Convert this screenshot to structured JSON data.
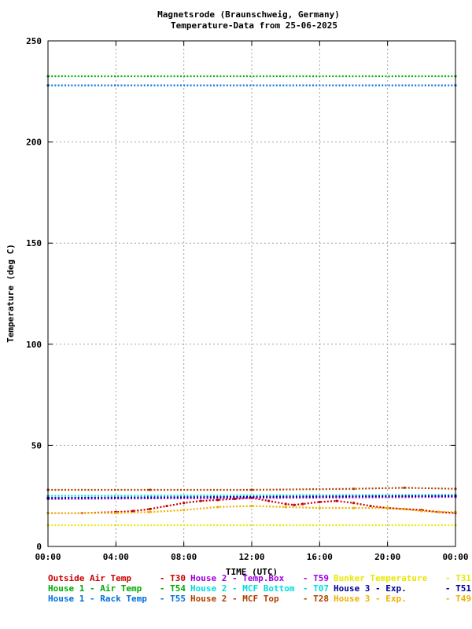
{
  "chart_data": {
    "type": "scatter",
    "title": "Magnetsrode (Braunschweig, Germany)",
    "subtitle": "Temperature-Data from 25-06-2025",
    "xlabel": "TIME (UTC)",
    "ylabel": "Temperature (deg C)",
    "xlim": [
      0,
      24
    ],
    "ylim": [
      0,
      250
    ],
    "grid": true,
    "x_ticks": [
      "00:00",
      "04:00",
      "08:00",
      "12:00",
      "16:00",
      "20:00",
      "00:00"
    ],
    "y_ticks": [
      "0",
      "50",
      "100",
      "150",
      "200",
      "250"
    ],
    "legend_position": "bottom",
    "series": [
      {
        "name": "Outside Air Temp",
        "sensor": "- T30",
        "color": "#cc0000",
        "points": [
          [
            0,
            16.5
          ],
          [
            2,
            16.5
          ],
          [
            4,
            17
          ],
          [
            5,
            17.5
          ],
          [
            6,
            18.5
          ],
          [
            7,
            20
          ],
          [
            8,
            21.5
          ],
          [
            9,
            22.5
          ],
          [
            10,
            23
          ],
          [
            11,
            23.5
          ],
          [
            12,
            24
          ],
          [
            13,
            22.5
          ],
          [
            14,
            21
          ],
          [
            14.5,
            20.5
          ],
          [
            15,
            21
          ],
          [
            16,
            22
          ],
          [
            17,
            22.5
          ],
          [
            18,
            21.5
          ],
          [
            19,
            20
          ],
          [
            20,
            19
          ],
          [
            21,
            18.5
          ],
          [
            22,
            18
          ],
          [
            23,
            17
          ],
          [
            24,
            16.5
          ]
        ]
      },
      {
        "name": "House 2 - Temp.Box",
        "sensor": "- T59",
        "color": "#a000e0",
        "points": [
          [
            0,
            23.5
          ],
          [
            24,
            24.5
          ]
        ]
      },
      {
        "name": "Bunker Temperature",
        "sensor": "- T31",
        "color": "#e8e800",
        "points": [
          [
            0,
            10.5
          ],
          [
            24,
            10.5
          ]
        ]
      },
      {
        "name": "House 1 - Air  Temp",
        "sensor": "- T54",
        "color": "#00aa00",
        "points": [
          [
            0,
            232.5
          ],
          [
            24,
            232.5
          ]
        ]
      },
      {
        "name": "House 2 - MCF Bottom",
        "sensor": "- T07",
        "color": "#00dddd",
        "points": [
          [
            0,
            25
          ],
          [
            24,
            25.5
          ]
        ]
      },
      {
        "name": "House 3 - Exp.",
        "sensor": "- T51",
        "color": "#000099",
        "points": [
          [
            0,
            24
          ],
          [
            24,
            25
          ]
        ]
      },
      {
        "name": "House 1 - Rack Temp",
        "sensor": "- T55",
        "color": "#0070dd",
        "points": [
          [
            0,
            228
          ],
          [
            24,
            228
          ]
        ]
      },
      {
        "name": "House 2 - MCF Top",
        "sensor": "- T28",
        "color": "#b04000",
        "points": [
          [
            0,
            28
          ],
          [
            6,
            28
          ],
          [
            12,
            28
          ],
          [
            18,
            28.5
          ],
          [
            21,
            29
          ],
          [
            24,
            28.5
          ]
        ]
      },
      {
        "name": "House 3 - Exp.",
        "sensor": "- T49",
        "color": "#f0b000",
        "points": [
          [
            0,
            16.5
          ],
          [
            4,
            16.5
          ],
          [
            6,
            17
          ],
          [
            8,
            18
          ],
          [
            10,
            19.5
          ],
          [
            12,
            20
          ],
          [
            14,
            19.5
          ],
          [
            16,
            19
          ],
          [
            18,
            19
          ],
          [
            20,
            19
          ],
          [
            21,
            18.5
          ],
          [
            22,
            17.5
          ],
          [
            23,
            17
          ],
          [
            24,
            17
          ]
        ]
      }
    ]
  }
}
